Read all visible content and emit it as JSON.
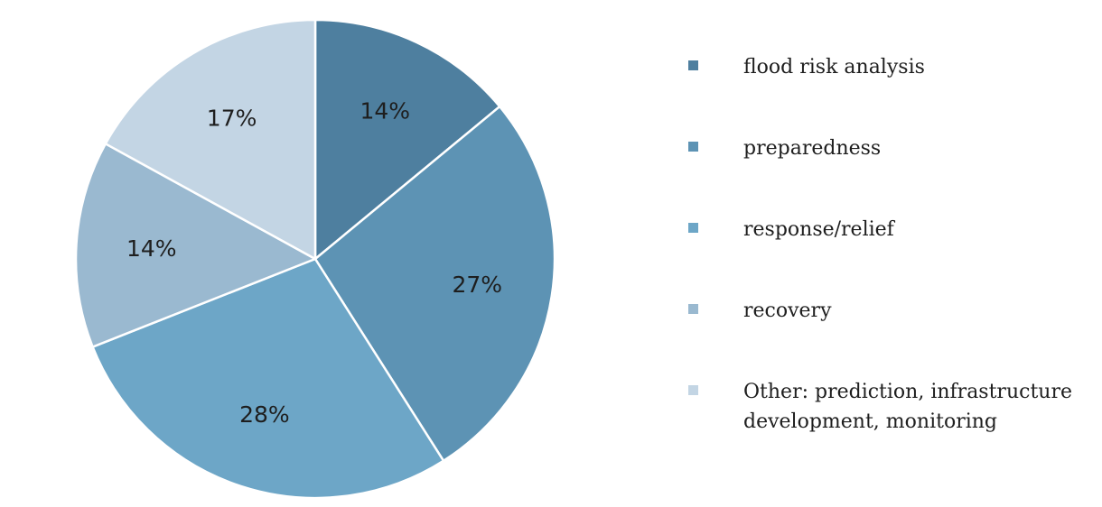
{
  "chart_data": {
    "type": "pie",
    "start_angle_deg": 0,
    "direction": "clockwise",
    "slices": [
      {
        "label": "flood risk analysis",
        "value": 14,
        "display": "14%",
        "color": "#4e7f9f"
      },
      {
        "label": "preparedness",
        "value": 27,
        "display": "27%",
        "color": "#5d93b4"
      },
      {
        "label": "response/relief",
        "value": 28,
        "display": "28%",
        "color": "#6da6c7"
      },
      {
        "label": "recovery",
        "value": 14,
        "display": "14%",
        "color": "#9ab9d0"
      },
      {
        "label": "Other: prediction, infrastructure development, monitoring",
        "value": 17,
        "display": "17%",
        "color": "#c3d5e4"
      }
    ],
    "legend_position": "right",
    "slice_border_color": "#ffffff"
  }
}
